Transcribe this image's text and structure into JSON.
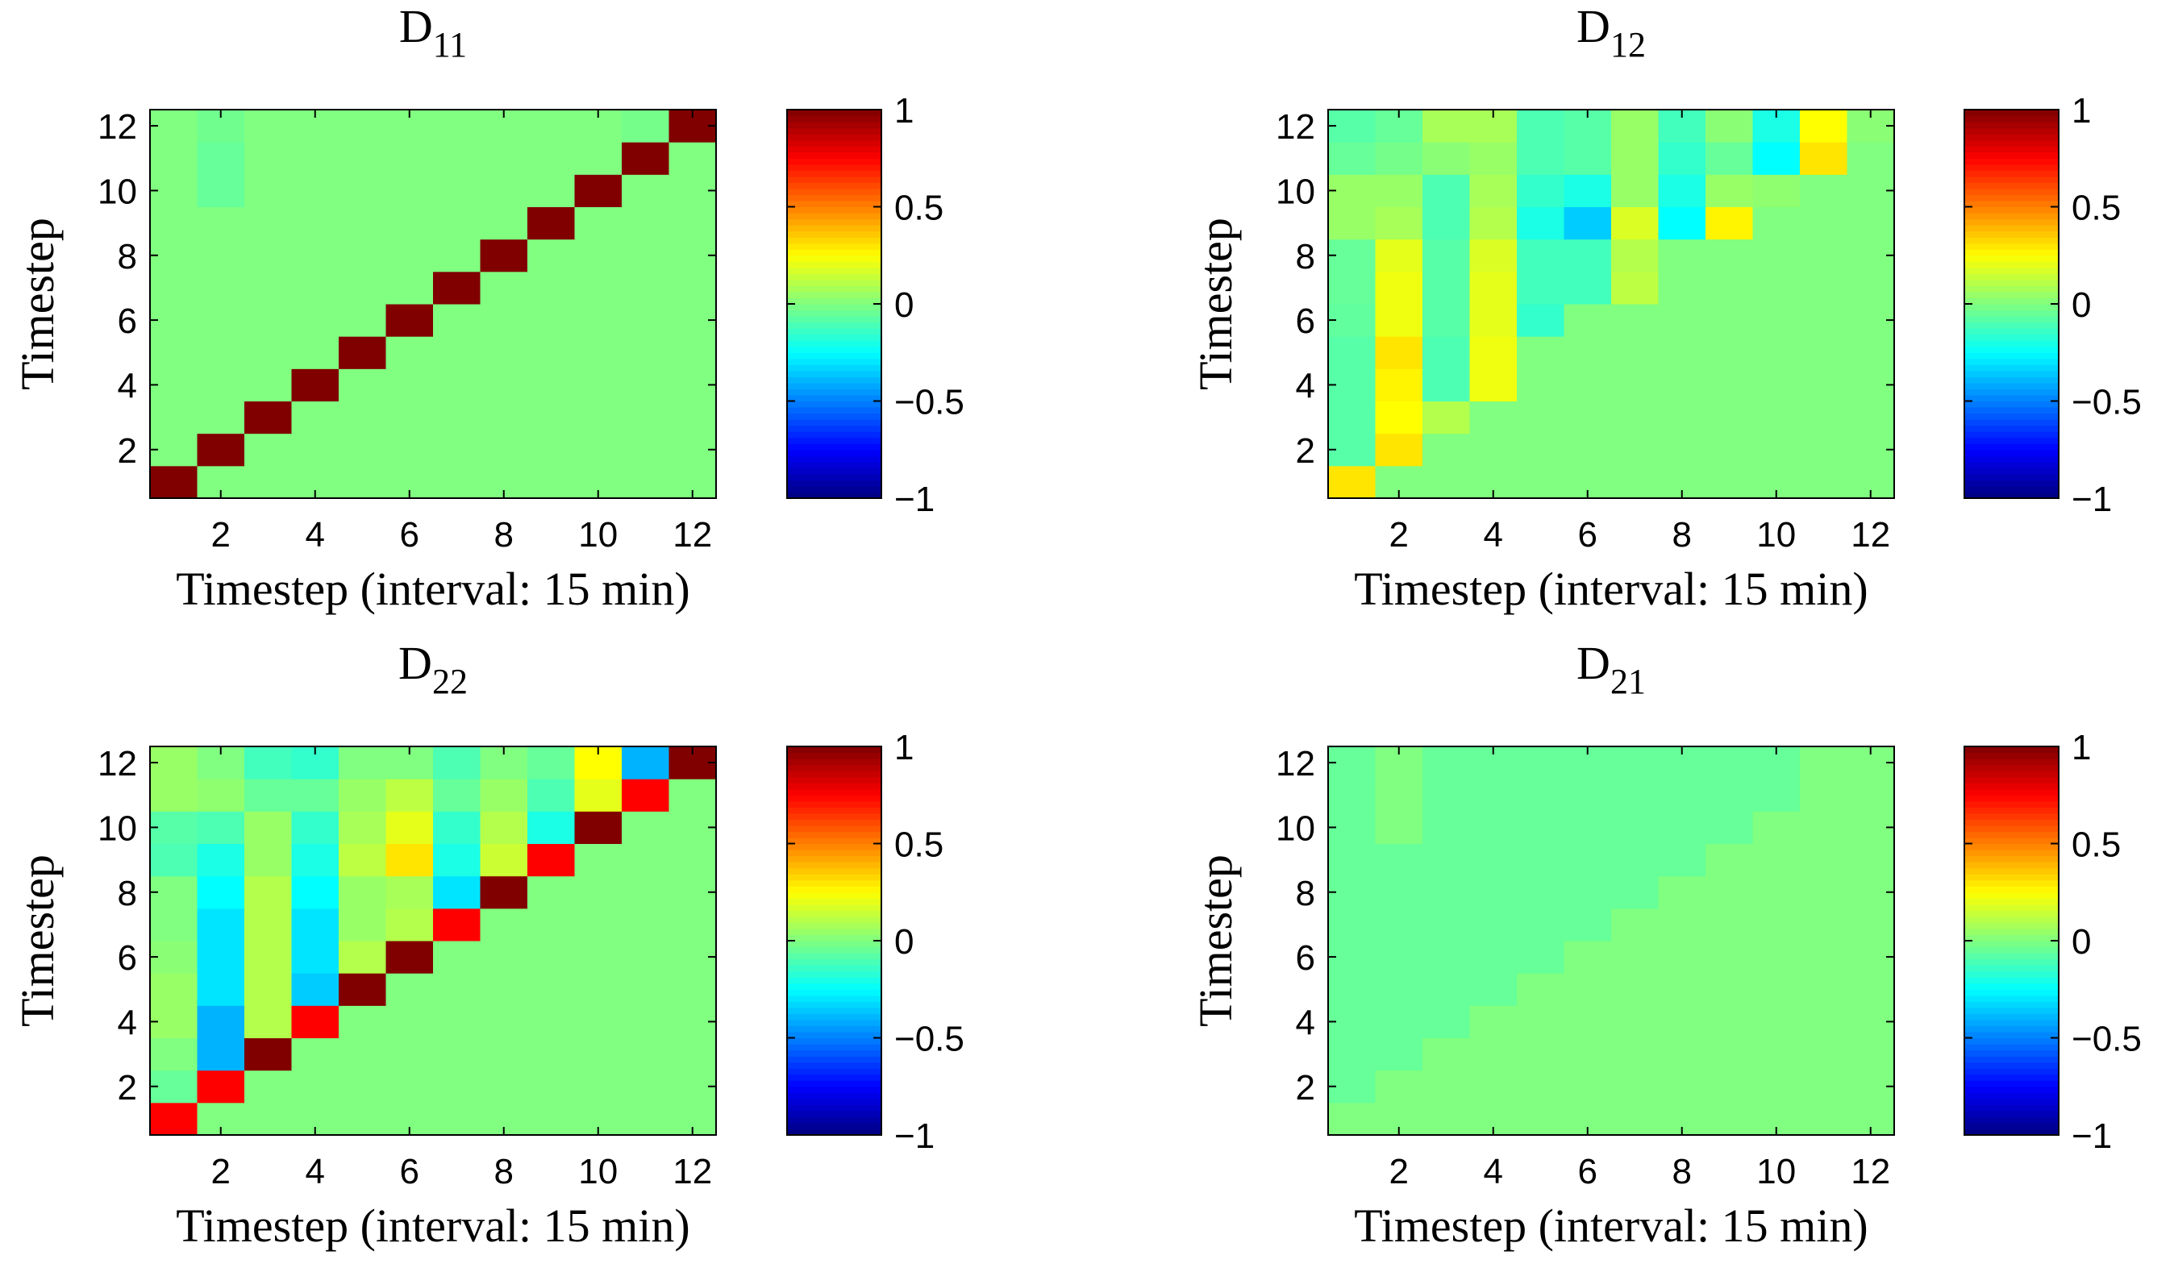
{
  "figure": {
    "colorbar_ticks": [
      "1",
      "0.5",
      "0",
      "−0.5",
      "−1"
    ],
    "colormap": "jet",
    "clim": [
      -1,
      1
    ]
  },
  "chart_data": [
    {
      "type": "heatmap",
      "title": "D",
      "title_subscript": "11",
      "xlabel": "Timestep (interval: 15 min)",
      "ylabel": "Timestep",
      "x_ticks": [
        "2",
        "4",
        "6",
        "8",
        "10",
        "12"
      ],
      "y_ticks": [
        "12",
        "10",
        "8",
        "6",
        "4",
        "2"
      ],
      "xlim": [
        0.5,
        12.5
      ],
      "ylim": [
        0.5,
        12.5
      ],
      "clim": [
        -1,
        1
      ],
      "z": [
        [
          1,
          0,
          0,
          0,
          0,
          0,
          0,
          0,
          0,
          0,
          0,
          0
        ],
        [
          0,
          1,
          0,
          0,
          0,
          0,
          0,
          0,
          0,
          0,
          0,
          0
        ],
        [
          0,
          0,
          1,
          0,
          0,
          0,
          0,
          0,
          0,
          0,
          0,
          0
        ],
        [
          0,
          0,
          0,
          1,
          0,
          0,
          0,
          0,
          0,
          0,
          0,
          0
        ],
        [
          0,
          0,
          0,
          0,
          1,
          0,
          0,
          0,
          0,
          0,
          0,
          0
        ],
        [
          0,
          0,
          0,
          0,
          0,
          1,
          0,
          0,
          0,
          0,
          0,
          0
        ],
        [
          0,
          0,
          0,
          0,
          0,
          0,
          1,
          0,
          0,
          0,
          0,
          0
        ],
        [
          0,
          0,
          0,
          0,
          0,
          0,
          0,
          1,
          0,
          0,
          0,
          0
        ],
        [
          0,
          0,
          0,
          0,
          0,
          0,
          0,
          0,
          1,
          0,
          0,
          0
        ],
        [
          0,
          -0.05,
          0,
          0,
          0,
          0,
          0,
          0,
          0,
          1,
          0,
          0
        ],
        [
          0,
          -0.05,
          0,
          0,
          0,
          0,
          0,
          0,
          0,
          0,
          1,
          0
        ],
        [
          0,
          -0.03,
          0,
          0,
          0,
          0,
          0,
          0,
          0,
          0,
          -0.02,
          1
        ]
      ]
    },
    {
      "type": "heatmap",
      "title": "D",
      "title_subscript": "12",
      "xlabel": "Timestep (interval: 15 min)",
      "ylabel": "Timestep",
      "x_ticks": [
        "2",
        "4",
        "6",
        "8",
        "10",
        "12"
      ],
      "y_ticks": [
        "12",
        "10",
        "8",
        "6",
        "4",
        "2"
      ],
      "xlim": [
        0.5,
        12.5
      ],
      "ylim": [
        0.5,
        12.5
      ],
      "clim": [
        -1,
        1
      ],
      "z": [
        [
          0.3,
          0,
          0,
          0,
          0,
          0,
          0,
          0,
          0,
          0,
          0,
          0
        ],
        [
          -0.08,
          0.3,
          0,
          0,
          0,
          0,
          0,
          0,
          0,
          0,
          0,
          0
        ],
        [
          -0.08,
          0.25,
          0.1,
          0,
          0,
          0,
          0,
          0,
          0,
          0,
          0,
          0
        ],
        [
          -0.08,
          0.27,
          -0.1,
          0.22,
          0,
          0,
          0,
          0,
          0,
          0,
          0,
          0
        ],
        [
          -0.08,
          0.3,
          -0.1,
          0.22,
          0,
          0,
          0,
          0,
          0,
          0,
          0,
          0
        ],
        [
          -0.06,
          0.22,
          -0.08,
          0.2,
          -0.15,
          0,
          0,
          0,
          0,
          0,
          0,
          0
        ],
        [
          -0.05,
          0.22,
          -0.08,
          0.2,
          -0.12,
          -0.12,
          0.12,
          0,
          0,
          0,
          0,
          0
        ],
        [
          -0.05,
          0.2,
          -0.08,
          0.18,
          -0.12,
          -0.12,
          0.1,
          0,
          0,
          0,
          0,
          0
        ],
        [
          0.05,
          0.08,
          -0.1,
          0.1,
          -0.2,
          -0.35,
          0.18,
          -0.25,
          0.27,
          0,
          0,
          0
        ],
        [
          0.05,
          0.05,
          -0.1,
          0.08,
          -0.15,
          -0.2,
          0.05,
          -0.2,
          0.05,
          0.03,
          0,
          0
        ],
        [
          -0.05,
          -0.02,
          0.02,
          0.05,
          -0.1,
          -0.08,
          0.05,
          -0.15,
          -0.05,
          -0.25,
          0.3,
          0
        ],
        [
          -0.08,
          -0.05,
          0.08,
          0.08,
          -0.1,
          -0.08,
          0.05,
          -0.12,
          0.02,
          -0.2,
          0.25,
          0.02
        ]
      ]
    },
    {
      "type": "heatmap",
      "title": "D",
      "title_subscript": "22",
      "xlabel": "Timestep (interval: 15 min)",
      "ylabel": "Timestep",
      "x_ticks": [
        "2",
        "4",
        "6",
        "8",
        "10",
        "12"
      ],
      "y_ticks": [
        "12",
        "10",
        "8",
        "6",
        "4",
        "2"
      ],
      "xlim": [
        0.5,
        12.5
      ],
      "ylim": [
        0.5,
        12.5
      ],
      "clim": [
        -1,
        1
      ],
      "z": [
        [
          0.75,
          0,
          0,
          0,
          0,
          0,
          0,
          0,
          0,
          0,
          0,
          0
        ],
        [
          -0.05,
          0.75,
          0,
          0,
          0,
          0,
          0,
          0,
          0,
          0,
          0,
          0
        ],
        [
          0,
          -0.4,
          1,
          0,
          0,
          0,
          0,
          0,
          0,
          0,
          0,
          0
        ],
        [
          0.05,
          -0.4,
          0.1,
          0.75,
          0,
          0,
          0,
          0,
          0,
          0,
          0,
          0
        ],
        [
          0.05,
          -0.3,
          0.1,
          -0.35,
          1,
          0,
          0,
          0,
          0,
          0,
          0,
          0
        ],
        [
          0.02,
          -0.3,
          0.1,
          -0.3,
          0.1,
          1,
          0,
          0,
          0,
          0,
          0,
          0
        ],
        [
          0,
          -0.3,
          0.1,
          -0.3,
          0.05,
          0.1,
          0.75,
          0,
          0,
          0,
          0,
          0
        ],
        [
          0,
          -0.25,
          0.1,
          -0.25,
          0.05,
          0.08,
          -0.3,
          1,
          0,
          0,
          0,
          0
        ],
        [
          -0.1,
          -0.2,
          0.05,
          -0.2,
          0.12,
          0.3,
          -0.2,
          0.15,
          0.75,
          0,
          0,
          0
        ],
        [
          -0.08,
          -0.1,
          0.05,
          -0.15,
          0.08,
          0.2,
          -0.15,
          0.1,
          -0.2,
          1,
          0,
          0
        ],
        [
          0.05,
          0.03,
          -0.05,
          -0.05,
          0.05,
          0.12,
          -0.05,
          0.05,
          -0.1,
          0.2,
          0.75,
          0
        ],
        [
          0.05,
          0,
          -0.12,
          -0.15,
          0,
          0,
          -0.1,
          0,
          -0.05,
          0.25,
          -0.4,
          1
        ]
      ]
    },
    {
      "type": "heatmap",
      "title": "D",
      "title_subscript": "21",
      "xlabel": "Timestep (interval: 15 min)",
      "ylabel": "Timestep",
      "x_ticks": [
        "2",
        "4",
        "6",
        "8",
        "10",
        "12"
      ],
      "y_ticks": [
        "12",
        "10",
        "8",
        "6",
        "4",
        "2"
      ],
      "xlim": [
        0.5,
        12.5
      ],
      "ylim": [
        0.5,
        12.5
      ],
      "clim": [
        -1,
        1
      ],
      "z": [
        [
          0,
          0,
          0,
          0,
          0,
          0,
          0,
          0,
          0,
          0,
          0,
          0
        ],
        [
          -0.05,
          0,
          0,
          0,
          0,
          0,
          0,
          0,
          0,
          0,
          0,
          0
        ],
        [
          -0.05,
          -0.05,
          0,
          0,
          0,
          0,
          0,
          0,
          0,
          0,
          0,
          0
        ],
        [
          -0.05,
          -0.05,
          -0.05,
          0,
          0,
          0,
          0,
          0,
          0,
          0,
          0,
          0
        ],
        [
          -0.05,
          -0.05,
          -0.05,
          -0.05,
          0,
          0,
          0,
          0,
          0,
          0,
          0,
          0
        ],
        [
          -0.05,
          -0.05,
          -0.05,
          -0.05,
          -0.05,
          0,
          0,
          0,
          0,
          0,
          0,
          0
        ],
        [
          -0.05,
          -0.05,
          -0.05,
          -0.05,
          -0.05,
          -0.05,
          0,
          0,
          0,
          0,
          0,
          0
        ],
        [
          -0.05,
          -0.05,
          -0.05,
          -0.05,
          -0.05,
          -0.05,
          -0.05,
          0,
          0,
          0,
          0,
          0
        ],
        [
          -0.05,
          -0.05,
          -0.05,
          -0.05,
          -0.05,
          -0.05,
          -0.05,
          -0.05,
          0,
          0,
          0,
          0
        ],
        [
          -0.05,
          0,
          -0.05,
          -0.05,
          -0.05,
          -0.05,
          -0.05,
          -0.05,
          -0.05,
          0,
          0,
          0
        ],
        [
          -0.05,
          0,
          -0.05,
          -0.05,
          -0.05,
          -0.05,
          -0.05,
          -0.05,
          -0.05,
          -0.05,
          0,
          0
        ],
        [
          -0.05,
          0,
          -0.05,
          -0.05,
          -0.05,
          -0.05,
          -0.05,
          -0.05,
          -0.05,
          -0.05,
          0,
          0
        ]
      ]
    }
  ]
}
